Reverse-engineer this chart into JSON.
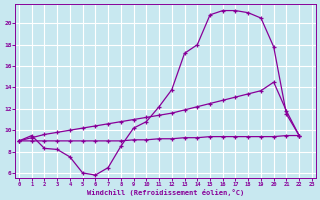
{
  "bg_color": "#c8e8f0",
  "line_color": "#880099",
  "grid_color": "#ffffff",
  "xlabel": "Windchill (Refroidissement éolien,°C)",
  "xlim": [
    -0.3,
    23.3
  ],
  "ylim": [
    5.5,
    21.8
  ],
  "xticks": [
    0,
    1,
    2,
    3,
    4,
    5,
    6,
    7,
    8,
    9,
    10,
    11,
    12,
    13,
    14,
    15,
    16,
    17,
    18,
    19,
    20,
    21,
    22,
    23
  ],
  "yticks": [
    6,
    8,
    10,
    12,
    14,
    16,
    18,
    20
  ],
  "curve1_x": [
    0,
    1,
    2,
    3,
    4,
    5,
    6,
    7,
    8,
    9,
    10,
    11,
    12,
    13,
    14,
    15,
    16,
    17,
    18,
    19,
    20,
    21,
    22
  ],
  "curve1_y": [
    9.0,
    9.5,
    8.3,
    8.2,
    7.5,
    6.0,
    5.8,
    6.5,
    8.5,
    10.2,
    10.8,
    12.2,
    13.8,
    17.2,
    18.0,
    20.8,
    21.2,
    21.2,
    21.0,
    20.5,
    17.8,
    11.5,
    9.5
  ],
  "curve2_x": [
    0,
    1,
    2,
    3,
    4,
    5,
    6,
    7,
    8,
    9,
    10,
    11,
    12,
    13,
    14,
    15,
    16,
    17,
    18,
    19,
    20,
    21,
    22
  ],
  "curve2_y": [
    9.0,
    9.3,
    9.6,
    9.8,
    10.0,
    10.2,
    10.4,
    10.6,
    10.8,
    11.0,
    11.2,
    11.4,
    11.6,
    11.9,
    12.2,
    12.5,
    12.8,
    13.1,
    13.4,
    13.7,
    14.5,
    11.8,
    9.5
  ],
  "curve3_x": [
    0,
    1,
    2,
    3,
    4,
    5,
    6,
    7,
    8,
    9,
    10,
    11,
    12,
    13,
    14,
    15,
    16,
    17,
    18,
    19,
    20,
    21,
    22
  ],
  "curve3_y": [
    9.0,
    9.0,
    9.0,
    9.0,
    9.0,
    9.0,
    9.0,
    9.0,
    9.0,
    9.1,
    9.1,
    9.2,
    9.2,
    9.3,
    9.3,
    9.4,
    9.4,
    9.4,
    9.4,
    9.4,
    9.4,
    9.5,
    9.5
  ]
}
